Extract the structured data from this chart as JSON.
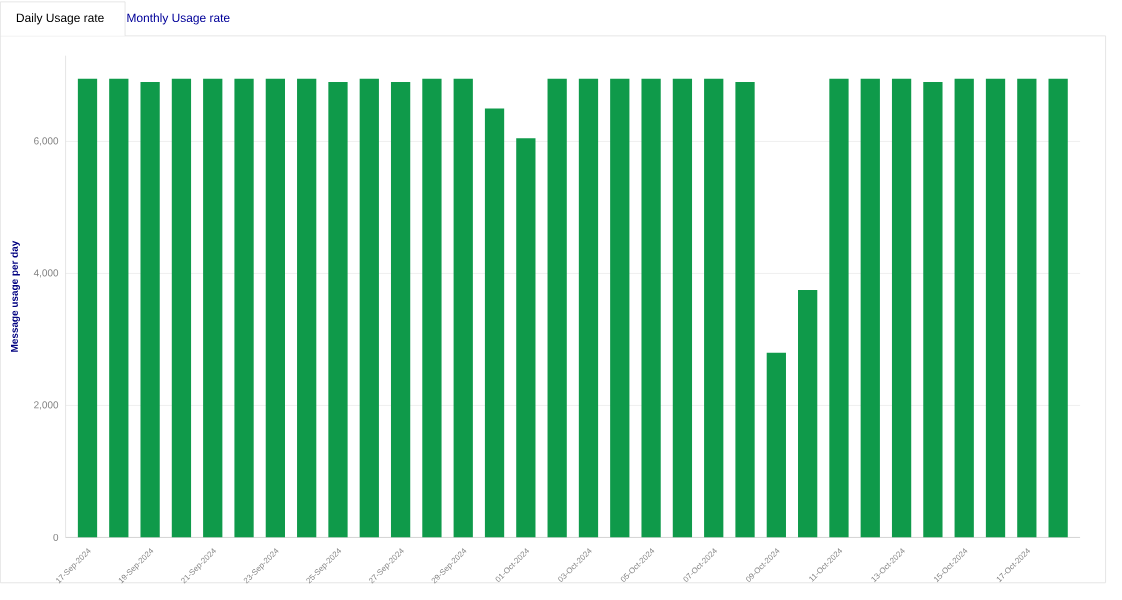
{
  "chart_data": {
    "type": "bar",
    "title": "Daily Usage rate",
    "annotations": [
      "Monthly Usage rate"
    ],
    "ylabel": "Message usage per day",
    "categories": [
      "17-Sep-2024",
      null,
      "19-Sep-2024",
      null,
      "21-Sep-2024",
      null,
      "23-Sep-2024",
      null,
      "25-Sep-2024",
      null,
      "27-Sep-2024",
      null,
      "29-Sep-2024",
      null,
      "01-Oct-2024",
      null,
      "03-Oct-2024",
      null,
      "05-Oct-2024",
      null,
      "07-Oct-2024",
      null,
      "09-Oct-2024",
      null,
      "11-Oct-2024",
      null,
      "13-Oct-2024",
      null,
      "15-Oct-2024",
      null,
      "17-Oct-2024",
      null
    ],
    "values": [
      6950,
      6950,
      6900,
      6950,
      6950,
      6950,
      6950,
      6950,
      6900,
      6950,
      6900,
      6950,
      6950,
      6500,
      6050,
      6950,
      6950,
      6950,
      6950,
      6950,
      6950,
      6900,
      2800,
      3750,
      6950,
      6950,
      6950,
      6900,
      6950,
      6950,
      6950,
      6950
    ],
    "color": "#0f9a4a",
    "ylim": [
      0,
      7300
    ],
    "yticks": [
      {
        "value": 0,
        "label": "0"
      },
      {
        "value": 2000,
        "label": "2,000"
      },
      {
        "value": 4000,
        "label": "4,000"
      },
      {
        "value": 6000,
        "label": "6,000"
      }
    ],
    "grid": "y"
  }
}
